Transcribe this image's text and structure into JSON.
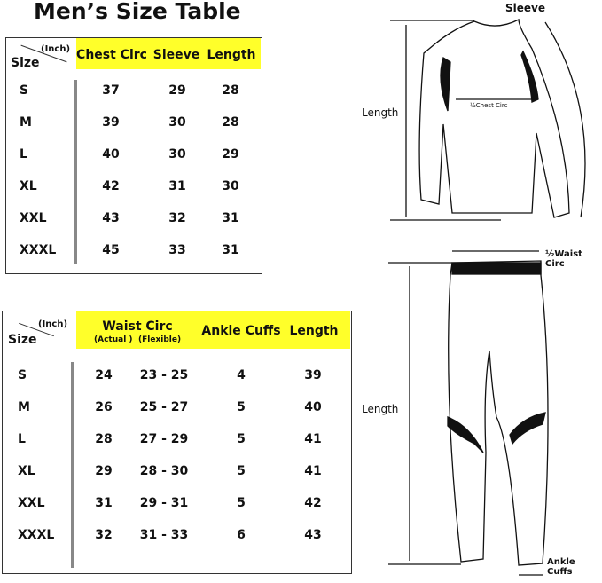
{
  "title": "Men’s Size Table",
  "top_table": {
    "unit": "(Inch)",
    "size_label": "Size",
    "headers": [
      "Chest Circ",
      "Sleeve",
      "Length"
    ],
    "rows": [
      [
        "S",
        "37",
        "29",
        "28"
      ],
      [
        "M",
        "39",
        "30",
        "28"
      ],
      [
        "L",
        "40",
        "30",
        "29"
      ],
      [
        "XL",
        "42",
        "31",
        "30"
      ],
      [
        "XXL",
        "43",
        "32",
        "31"
      ],
      [
        "XXXL",
        "45",
        "33",
        "31"
      ]
    ]
  },
  "bottom_table": {
    "unit": "(Inch)",
    "size_label": "Size",
    "headers": [
      "Waist Circ",
      "Ankle Cuffs",
      "Length"
    ],
    "subheaders": [
      "(Actual )",
      "(Flexible)"
    ],
    "rows": [
      [
        "S",
        "24",
        "23 - 25",
        "4",
        "39"
      ],
      [
        "M",
        "26",
        "25 - 27",
        "5",
        "40"
      ],
      [
        "L",
        "28",
        "27 - 29",
        "5",
        "41"
      ],
      [
        "XL",
        "29",
        "28 - 30",
        "5",
        "41"
      ],
      [
        "XXL",
        "31",
        "29 - 31",
        "5",
        "42"
      ],
      [
        "XXXL",
        "32",
        "31 - 33",
        "6",
        "43"
      ]
    ]
  },
  "shirt_labels": {
    "sleeve": "Sleeve",
    "length": "Length",
    "chest": "½Chest Circ"
  },
  "pants_labels": {
    "waist": "½Waist Circ",
    "length": "Length",
    "ankle": "Ankle Cuffs"
  },
  "colors": {
    "header_yellow": "#ffff2a"
  }
}
